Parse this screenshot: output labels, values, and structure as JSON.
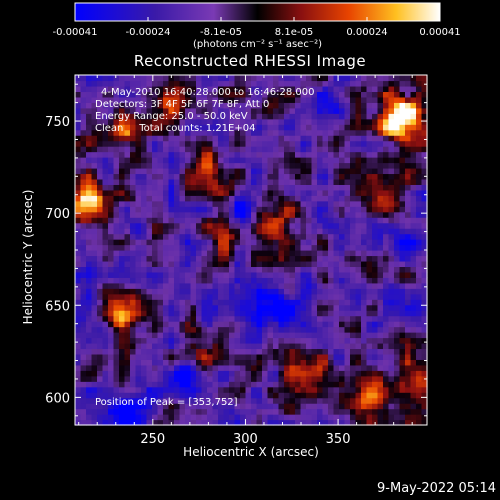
{
  "title": "Reconstructed RHESSI Image",
  "overlay": {
    "line1": "4-May-2010 16:40:28.000 to 16:46:28.000",
    "line2": "Detectors: 3F 4F 5F 6F 7F 8F, Att 0",
    "line3": "Energy Range: 25.0 - 50.0 keV",
    "line4": "Clean     Total counts: 1.21E+04"
  },
  "peak_text": "Position of Peak = [353,752]",
  "footer": "9-May-2022 05:14",
  "colorbar": {
    "ticks": [
      "-0.00041",
      "-0.00024",
      "-8.1e-05",
      "8.1e-05",
      "0.00024",
      "0.00041"
    ],
    "units": "(photons cm⁻² s⁻¹ asec⁻²)",
    "min": -0.00041,
    "max": 0.00041
  },
  "chart_data": {
    "type": "heatmap",
    "title": "Reconstructed RHESSI Image",
    "xlabel": "Heliocentric X (arcsec)",
    "ylabel": "Heliocentric Y (arcsec)",
    "xlim": [
      208,
      398
    ],
    "ylim": [
      585,
      775
    ],
    "xticks": [
      250,
      300,
      350
    ],
    "yticks": [
      600,
      650,
      700,
      750
    ],
    "colormap": "blue-purple-red-yellow-white",
    "colors": [
      "#0000ff",
      "#5a1aa0",
      "#1a0010",
      "#cc2200",
      "#ff8800",
      "#ffee44",
      "#ffffff"
    ],
    "peak": {
      "x": 353,
      "y": 752
    }
  }
}
